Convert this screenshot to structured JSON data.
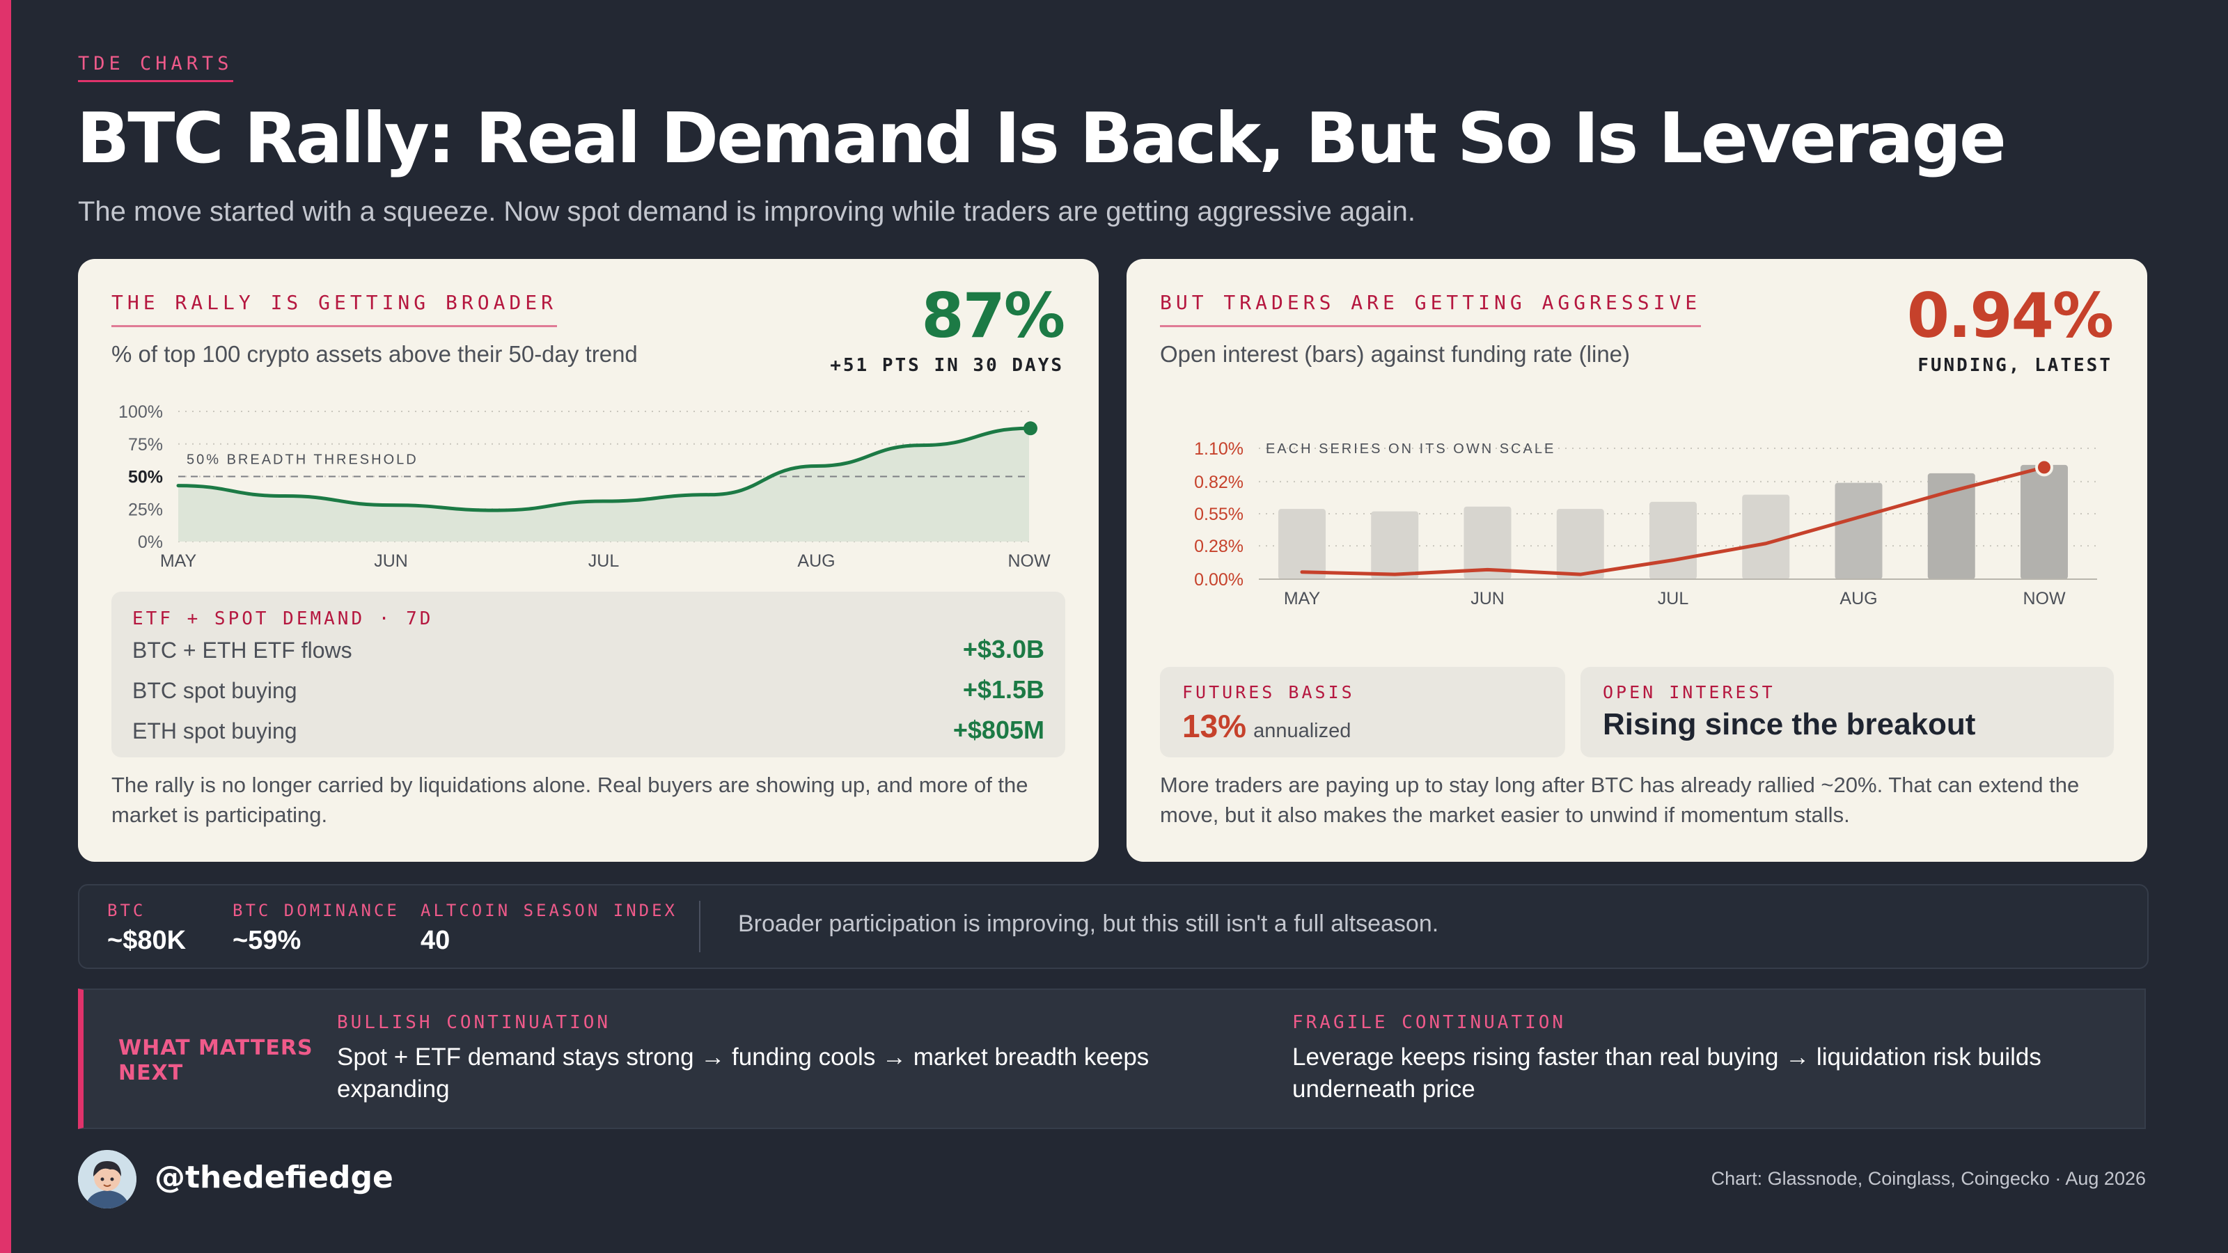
{
  "brand": "TDE CHARTS",
  "title": "BTC Rally: Real Demand Is Back, But So Is Leverage",
  "subtitle": "The move started with a squeeze. Now spot demand is improving while traders are getting aggressive again.",
  "colors": {
    "accent": "#e0336b",
    "green": "#1c7a45",
    "red": "#c6412b",
    "bg": "#232833",
    "card": "#f6f3ea"
  },
  "left": {
    "kicker": "THE RALLY IS GETTING BROADER",
    "subtitle": "% of top 100 crypto assets above their 50-day trend",
    "big": "87%",
    "big_sub": "+51 PTS IN 30 DAYS",
    "demand": {
      "title": "ETF + SPOT DEMAND · 7D",
      "rows": [
        {
          "label": "BTC + ETH ETF flows",
          "value": "+$3.0B"
        },
        {
          "label": "BTC spot buying",
          "value": "+$1.5B"
        },
        {
          "label": "ETH spot buying",
          "value": "+$805M"
        }
      ]
    },
    "note": "The rally is no longer carried by liquidations alone. Real buyers are showing up, and more of the market is participating."
  },
  "right": {
    "kicker": "BUT TRADERS ARE GETTING AGGRESSIVE",
    "subtitle": "Open interest (bars) against funding rate (line)",
    "big": "0.94%",
    "big_sub": "FUNDING, LATEST",
    "basis": {
      "label": "FUTURES BASIS",
      "value": "13%",
      "unit": "annualized"
    },
    "oi": {
      "label": "OPEN INTEREST",
      "value": "Rising since the breakout"
    },
    "note": "More traders are paying up to stay long after BTC has already rallied ~20%. That can extend the move, but it also makes the market easier to unwind if momentum stalls."
  },
  "chart_data": [
    {
      "type": "area",
      "x_labels": [
        "MAY",
        "JUN",
        "JUL",
        "AUG",
        "NOW"
      ],
      "x": [
        0,
        0.5,
        1,
        1.5,
        2,
        2.5,
        3,
        3.5,
        4
      ],
      "values": [
        43,
        35,
        28,
        24,
        31,
        36,
        58,
        74,
        87
      ],
      "y_ticks": [
        "100%",
        "75%",
        "50%",
        "25%",
        "0%"
      ],
      "ylim": [
        0,
        100
      ],
      "threshold": {
        "value": 50,
        "label": "50% BREADTH THRESHOLD"
      },
      "grid": true
    },
    {
      "type": "bar+line",
      "annotation": "EACH SERIES ON ITS OWN SCALE",
      "x_labels": [
        "MAY",
        "JUN",
        "JUL",
        "AUG",
        "NOW"
      ],
      "bars": [
        0.59,
        0.57,
        0.61,
        0.59,
        0.65,
        0.71,
        0.81,
        0.89,
        0.96
      ],
      "funding": [
        0.06,
        0.04,
        0.08,
        0.04,
        0.16,
        0.3,
        0.52,
        0.74,
        0.94
      ],
      "y_ticks": [
        "1.10%",
        "0.82%",
        "0.55%",
        "0.28%",
        "0.00%"
      ],
      "ylim": [
        0,
        1.1
      ],
      "grid": true
    }
  ],
  "stats": [
    {
      "label": "BTC",
      "value": "~$80K"
    },
    {
      "label": "BTC DOMINANCE",
      "value": "~59%"
    },
    {
      "label": "ALTCOIN SEASON INDEX",
      "value": "40"
    }
  ],
  "stats_note": "Broader participation is improving, but this still isn't a full altseason.",
  "next": {
    "label": "WHAT MATTERS NEXT",
    "bullish": {
      "title": "BULLISH CONTINUATION",
      "text": "Spot + ETF demand stays strong → funding cools → market breadth keeps expanding"
    },
    "fragile": {
      "title": "FRAGILE CONTINUATION",
      "text": "Leverage keeps rising faster than real buying → liquidation risk builds underneath price"
    }
  },
  "footer": {
    "handle": "@thedefiedge",
    "credit": "Chart: Glassnode, Coinglass, Coingecko · Aug 2026"
  }
}
